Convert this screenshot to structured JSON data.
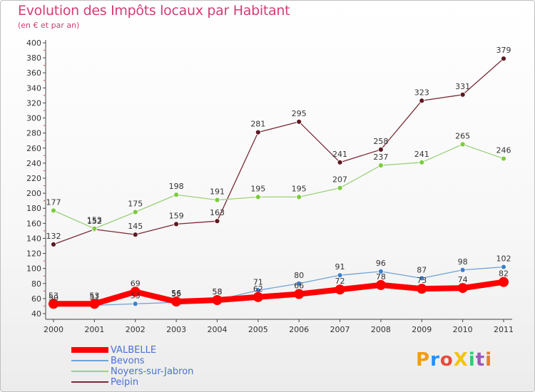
{
  "header": {
    "title": "Evolution des Impôts locaux par Habitant",
    "subtitle": "(en € et par an)"
  },
  "brand": {
    "text": "ProXiti",
    "letter_colors": [
      "#f39c12",
      "#1e90ff",
      "#e74c3c",
      "#f1c40f",
      "#2ecc71",
      "#9b59b6",
      "#e67e22"
    ]
  },
  "chart_data": {
    "type": "line",
    "title": "Evolution des Impôts locaux par Habitant",
    "subtitle": "(en € et par an)",
    "xlabel": "",
    "ylabel": "",
    "x": [
      "2000",
      "2001",
      "2002",
      "2003",
      "2004",
      "2005",
      "2006",
      "2007",
      "2008",
      "2009",
      "2010",
      "2011"
    ],
    "ylim": [
      40,
      400
    ],
    "yticks": [
      40,
      60,
      80,
      100,
      120,
      140,
      160,
      180,
      200,
      220,
      240,
      260,
      280,
      300,
      320,
      340,
      360,
      380,
      400
    ],
    "grid": false,
    "legend_position": "bottom-left",
    "series": [
      {
        "name": "VALBELLE",
        "color": "#ff0000",
        "marker_color": "#ff0000",
        "width": 8,
        "marker_r": 7,
        "values": [
          53,
          53,
          69,
          56,
          58,
          62,
          66,
          72,
          78,
          73,
          74,
          82
        ],
        "labels": [
          "53",
          "53",
          "69",
          "56",
          "58",
          "62",
          "66",
          "72",
          "78",
          "73",
          "74",
          "82"
        ]
      },
      {
        "name": "Bevons",
        "color": "#6fa3d6",
        "marker_color": "#3a80d0",
        "width": 1.3,
        "marker_r": 3.5,
        "values": [
          50,
          51,
          53,
          55,
          58,
          71,
          80,
          91,
          96,
          87,
          98,
          102
        ],
        "labels": [
          "50",
          "51",
          "53",
          "55",
          "58",
          "71",
          "80",
          "91",
          "96",
          "87",
          "98",
          "102"
        ]
      },
      {
        "name": "Noyers-sur-Jabron",
        "color": "#9ad17a",
        "marker_color": "#7ccc3c",
        "width": 1.3,
        "marker_r": 3.5,
        "values": [
          177,
          153,
          175,
          198,
          191,
          195,
          195,
          207,
          237,
          241,
          265,
          246
        ],
        "labels": [
          "177",
          "153",
          "175",
          "198",
          "191",
          "195",
          "195",
          "207",
          "237",
          "241",
          "265",
          "246"
        ]
      },
      {
        "name": "Peipin",
        "color": "#7a2a35",
        "marker_color": "#5c1a22",
        "width": 1.3,
        "marker_r": 3.5,
        "values": [
          132,
          152,
          145,
          159,
          163,
          281,
          295,
          241,
          258,
          323,
          331,
          379
        ],
        "labels": [
          "132",
          "152",
          "145",
          "159",
          "163",
          "281",
          "295",
          "241",
          "258",
          "323",
          "331",
          "379"
        ]
      }
    ]
  }
}
